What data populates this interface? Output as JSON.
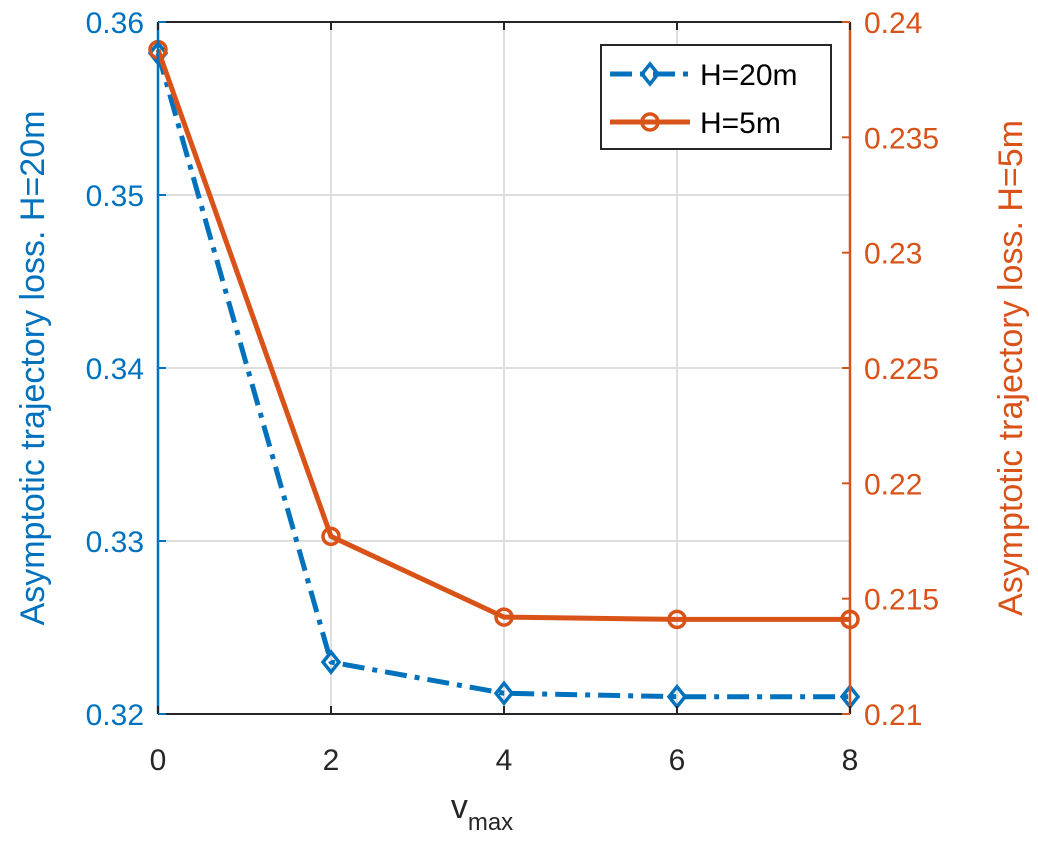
{
  "chart_data": {
    "type": "line",
    "title": "",
    "x": [
      0,
      2,
      4,
      6,
      8
    ],
    "xlabel_main": "v",
    "xlabel_sub": "max",
    "xlim": [
      0,
      8
    ],
    "xticks": [
      "0",
      "2",
      "4",
      "6",
      "8"
    ],
    "grid": true,
    "legend_position": "top-right",
    "left_axis": {
      "label": "Asymptotic trajectory loss. H=20m",
      "ylim": [
        0.32,
        0.36
      ],
      "ticks": [
        0.32,
        0.33,
        0.34,
        0.35,
        0.36
      ],
      "tick_labels": [
        "0.32",
        "0.33",
        "0.34",
        "0.35",
        "0.36"
      ],
      "color": "#0072BD"
    },
    "right_axis": {
      "label": "Asymptotic trajectory loss. H=5m",
      "ylim": [
        0.21,
        0.24
      ],
      "ticks": [
        0.21,
        0.215,
        0.22,
        0.225,
        0.23,
        0.235,
        0.24
      ],
      "tick_labels": [
        "0.21",
        "0.215",
        "0.22",
        "0.225",
        "0.23",
        "0.235",
        "0.24"
      ],
      "color": "#D95319"
    },
    "series": [
      {
        "name": "H=20m",
        "axis": "left",
        "color": "#0072BD",
        "line_style": "dash-dot",
        "marker": "diamond",
        "values": [
          0.3582,
          0.323,
          0.3212,
          0.321,
          0.321
        ]
      },
      {
        "name": "H=5m",
        "axis": "right",
        "color": "#D95319",
        "line_style": "solid",
        "marker": "circle",
        "values": [
          0.2388,
          0.2177,
          0.2142,
          0.2141,
          0.2141
        ]
      }
    ]
  }
}
